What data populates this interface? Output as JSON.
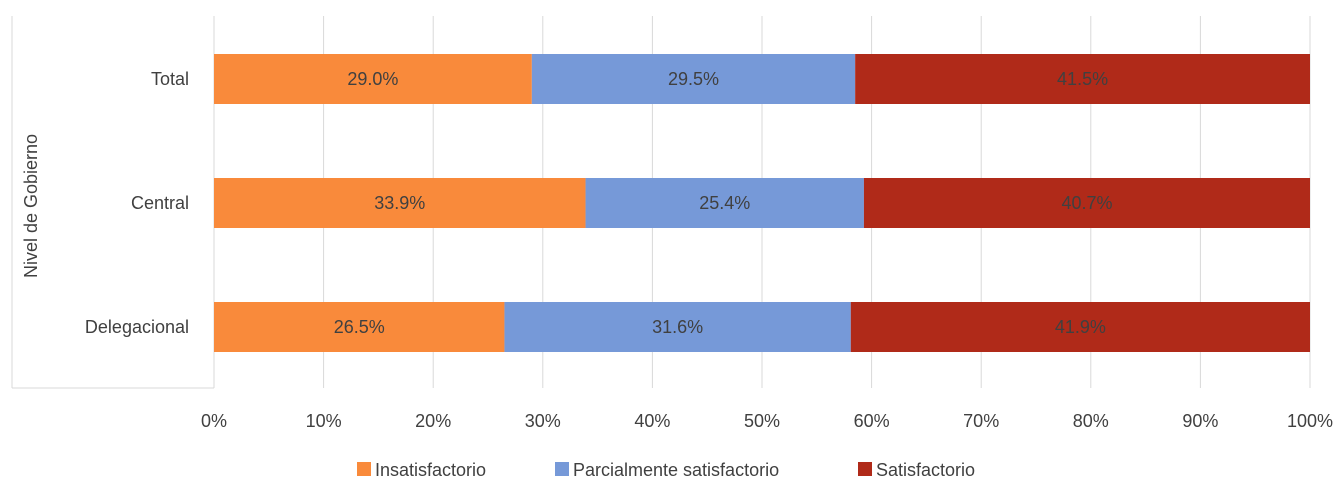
{
  "chart_data": {
    "type": "bar",
    "orientation": "horizontal",
    "stacked": "percent",
    "categories": [
      "Total",
      "Central",
      "Delegacional"
    ],
    "series": [
      {
        "name": "Insatisfactorio",
        "color": "#F98A3B",
        "values": [
          29.0,
          33.9,
          26.5
        ],
        "labels": [
          "29.0%",
          "33.9%",
          "26.5%"
        ]
      },
      {
        "name": "Parcialmente satisfactorio",
        "color": "#7699D8",
        "values": [
          29.5,
          25.4,
          31.6
        ],
        "labels": [
          "29.5%",
          "25.4%",
          "31.6%"
        ]
      },
      {
        "name": "Satisfactorio",
        "color": "#B02A19",
        "values": [
          41.5,
          40.7,
          41.9
        ],
        "labels": [
          "41.5%",
          "40.7%",
          "41.9%"
        ]
      }
    ],
    "ylabel": "Nivel de Gobierno",
    "xlim": [
      0,
      100
    ],
    "xticks": [
      "0%",
      "10%",
      "20%",
      "30%",
      "40%",
      "50%",
      "60%",
      "70%",
      "80%",
      "90%",
      "100%"
    ],
    "grid": true,
    "legend_position": "bottom"
  }
}
